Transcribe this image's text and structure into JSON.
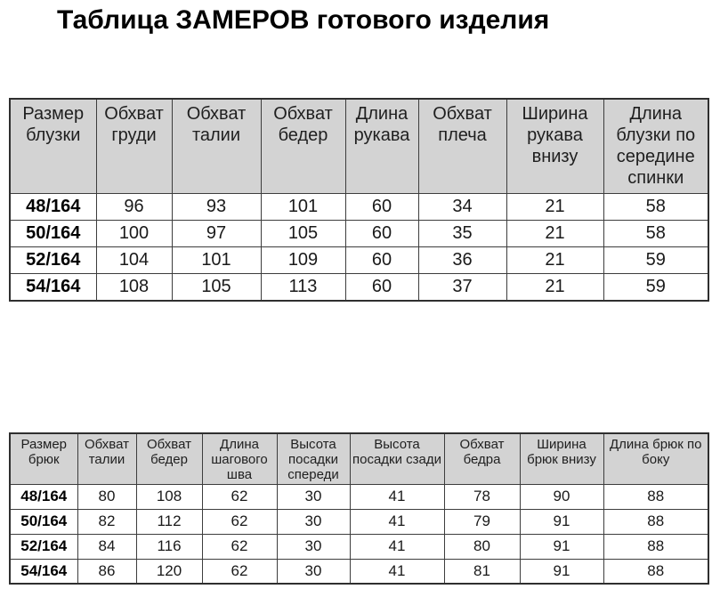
{
  "page": {
    "title": "Таблица ЗАМЕРОВ готового изделия"
  },
  "colors": {
    "header_bg": "#d3d3d3",
    "border": "#3d3d3d",
    "text": "#1a1a1a",
    "title_text": "#000000"
  },
  "chart_data": [
    {
      "type": "table",
      "name": "blouse_measurements",
      "columns": [
        "Размер блузки",
        "Обхват груди",
        "Обхват талии",
        "Обхват бедер",
        "Длина рукава",
        "Обхват плеча",
        "Ширина рукава внизу",
        "Длина блузки по середине спинки"
      ],
      "rows": [
        {
          "size": "48/164",
          "values": [
            96,
            93,
            101,
            60,
            34,
            21,
            58
          ]
        },
        {
          "size": "50/164",
          "values": [
            100,
            97,
            105,
            60,
            35,
            21,
            58
          ]
        },
        {
          "size": "52/164",
          "values": [
            104,
            101,
            109,
            60,
            36,
            21,
            59
          ]
        },
        {
          "size": "54/164",
          "values": [
            108,
            105,
            113,
            60,
            37,
            21,
            59
          ]
        }
      ]
    },
    {
      "type": "table",
      "name": "trousers_measurements",
      "columns": [
        "Размер брюк",
        "Обхват талии",
        "Обхват бедер",
        "Длина шагового шва",
        "Высота посадки спереди",
        "Высота посадки сзади",
        "Обхват бедра",
        "Ширина брюк внизу",
        "Длина брюк по боку"
      ],
      "rows": [
        {
          "size": "48/164",
          "values": [
            80,
            108,
            62,
            30,
            41,
            78,
            90,
            88
          ]
        },
        {
          "size": "50/164",
          "values": [
            82,
            112,
            62,
            30,
            41,
            79,
            91,
            88
          ]
        },
        {
          "size": "52/164",
          "values": [
            84,
            116,
            62,
            30,
            41,
            80,
            91,
            88
          ]
        },
        {
          "size": "54/164",
          "values": [
            86,
            120,
            62,
            30,
            41,
            81,
            91,
            88
          ]
        }
      ]
    }
  ]
}
